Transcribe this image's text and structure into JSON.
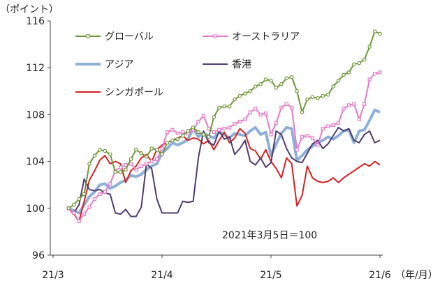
{
  "chart_data": {
    "type": "line",
    "title": "",
    "ylabel": "（ポイント）",
    "xlabel": "（年/月）",
    "ylim": [
      96,
      116
    ],
    "yticks": [
      96,
      100,
      104,
      108,
      112,
      116
    ],
    "xticks": [
      {
        "label": "21/3",
        "x": 0
      },
      {
        "label": "21/4",
        "x": 21
      },
      {
        "label": "21/5",
        "x": 42
      },
      {
        "label": "21/6",
        "x": 63
      }
    ],
    "grid": false,
    "legend_position": "top-left inside",
    "annotation": "2021年3月5日＝100",
    "x_range": [
      0,
      63
    ],
    "series": [
      {
        "name": "グローバル",
        "color": "#70963a",
        "marker": "circle-open",
        "x": [
          3,
          4,
          5,
          6,
          7,
          8,
          9,
          10,
          11,
          12,
          13,
          14,
          15,
          16,
          17,
          18,
          19,
          20,
          21,
          22,
          23,
          24,
          25,
          26,
          27,
          28,
          29,
          30,
          31,
          32,
          33,
          34,
          35,
          36,
          37,
          38,
          39,
          40,
          41,
          42,
          43,
          44,
          45,
          46,
          47,
          48,
          49,
          50,
          51,
          52,
          53,
          54,
          55,
          56,
          57,
          58,
          59,
          60,
          61,
          62,
          63
        ],
        "values": [
          100.0,
          100.3,
          100.8,
          101.2,
          103.8,
          104.5,
          105.0,
          104.9,
          104.6,
          103.1,
          103.1,
          103.3,
          104.2,
          105.0,
          104.7,
          104.4,
          105.1,
          105.0,
          104.6,
          105.6,
          105.8,
          105.9,
          106.2,
          106.6,
          106.9,
          106.5,
          106.3,
          106.1,
          107.8,
          108.6,
          108.7,
          108.7,
          109.3,
          109.6,
          109.8,
          110.0,
          110.4,
          110.6,
          111.0,
          110.9,
          110.3,
          110.6,
          111.1,
          111.2,
          110.0,
          108.2,
          109.3,
          109.5,
          109.4,
          109.6,
          109.7,
          110.4,
          110.9,
          111.4,
          111.6,
          112.3,
          112.4,
          112.7,
          113.8,
          115.1,
          114.9
        ]
      },
      {
        "name": "オーストラリア",
        "color": "#e878c8",
        "marker": "square-open",
        "x": [
          3,
          4,
          5,
          6,
          7,
          8,
          9,
          10,
          11,
          12,
          13,
          14,
          15,
          16,
          17,
          18,
          19,
          20,
          21,
          22,
          23,
          24,
          25,
          26,
          27,
          28,
          29,
          30,
          31,
          32,
          33,
          34,
          35,
          36,
          37,
          38,
          39,
          40,
          41,
          42,
          43,
          44,
          45,
          46,
          47,
          48,
          49,
          50,
          51,
          52,
          53,
          54,
          55,
          56,
          57,
          58,
          59,
          60,
          61,
          62,
          63
        ],
        "values": [
          100.0,
          99.6,
          98.9,
          99.5,
          100.1,
          100.8,
          101.2,
          101.4,
          102.1,
          103.2,
          103.5,
          103.7,
          103.8,
          103.3,
          103.6,
          103.8,
          104.0,
          104.2,
          105.1,
          106.5,
          106.7,
          106.4,
          106.5,
          106.4,
          106.7,
          107.4,
          107.9,
          106.8,
          106.5,
          106.7,
          106.8,
          106.9,
          107.2,
          107.4,
          107.6,
          108.2,
          108.5,
          108.0,
          108.1,
          106.3,
          107.3,
          108.6,
          108.9,
          108.6,
          105.0,
          106.1,
          106.2,
          106.0,
          105.4,
          106.8,
          107.0,
          107.1,
          107.3,
          108.5,
          108.8,
          108.9,
          107.6,
          108.9,
          111.0,
          111.5,
          111.6
        ]
      },
      {
        "name": "アジア",
        "color": "#8fafd6",
        "marker": "none",
        "x": [
          3,
          4,
          5,
          6,
          7,
          8,
          9,
          10,
          11,
          12,
          13,
          14,
          15,
          16,
          17,
          18,
          19,
          20,
          21,
          22,
          23,
          24,
          25,
          26,
          27,
          28,
          29,
          30,
          31,
          32,
          33,
          34,
          35,
          36,
          37,
          38,
          39,
          40,
          41,
          42,
          43,
          44,
          45,
          46,
          47,
          48,
          49,
          50,
          51,
          52,
          53,
          54,
          55,
          56,
          57,
          58,
          59,
          60,
          61,
          62,
          63
        ],
        "values": [
          100.0,
          99.8,
          99.6,
          100.3,
          101.0,
          101.4,
          102.0,
          102.1,
          101.7,
          101.9,
          102.2,
          102.4,
          102.8,
          102.7,
          102.9,
          103.3,
          103.6,
          103.8,
          104.7,
          105.1,
          105.6,
          105.4,
          105.6,
          105.9,
          106.8,
          106.1,
          106.4,
          106.2,
          106.0,
          106.5,
          106.3,
          106.0,
          106.4,
          106.3,
          106.2,
          106.6,
          106.9,
          106.3,
          106.5,
          104.5,
          105.5,
          106.4,
          106.9,
          106.8,
          104.1,
          104.5,
          105.0,
          105.3,
          105.6,
          105.8,
          106.1,
          105.9,
          106.2,
          106.6,
          106.7,
          105.6,
          106.6,
          106.7,
          107.5,
          108.4,
          108.2
        ]
      },
      {
        "name": "香港",
        "color": "#4e3c6e",
        "marker": "none",
        "x": [
          3,
          4,
          5,
          6,
          7,
          8,
          9,
          10,
          11,
          12,
          13,
          14,
          15,
          16,
          17,
          18,
          19,
          20,
          21,
          22,
          23,
          24,
          25,
          26,
          27,
          28,
          29,
          30,
          31,
          32,
          33,
          34,
          35,
          36,
          37,
          38,
          39,
          40,
          41,
          42,
          43,
          44,
          45,
          46,
          47,
          48,
          49,
          50,
          51,
          52,
          53,
          54,
          55,
          56,
          57,
          58,
          59,
          60,
          61,
          62,
          63
        ],
        "values": [
          100.0,
          99.6,
          100.3,
          102.5,
          101.6,
          101.5,
          101.6,
          101.3,
          101.2,
          99.6,
          99.5,
          99.9,
          99.3,
          99.3,
          100.1,
          103.8,
          103.4,
          100.8,
          99.6,
          99.6,
          99.6,
          99.6,
          100.6,
          100.5,
          100.6,
          104.3,
          106.6,
          105.6,
          105.4,
          106.6,
          105.9,
          106.1,
          104.6,
          105.1,
          105.8,
          104.0,
          103.7,
          104.3,
          103.5,
          103.9,
          106.6,
          106.3,
          105.1,
          104.3,
          104.0,
          103.9,
          104.7,
          105.5,
          105.8,
          105.1,
          105.5,
          106.2,
          106.9,
          106.6,
          106.8,
          105.8,
          105.6,
          106.3,
          106.6,
          105.6,
          105.8
        ]
      },
      {
        "name": "シンガポール",
        "color": "#d62020",
        "marker": "none",
        "x": [
          3,
          4,
          5,
          6,
          7,
          8,
          9,
          10,
          11,
          12,
          13,
          14,
          15,
          16,
          17,
          18,
          19,
          20,
          21,
          22,
          23,
          24,
          25,
          26,
          27,
          28,
          29,
          30,
          31,
          32,
          33,
          34,
          35,
          36,
          37,
          38,
          39,
          40,
          41,
          42,
          43,
          44,
          45,
          46,
          47,
          48,
          49,
          50,
          51,
          52,
          53,
          54,
          55,
          56,
          57,
          58,
          59,
          60,
          61,
          62,
          63
        ],
        "values": [
          100.0,
          99.5,
          98.9,
          100.6,
          102.4,
          103.2,
          104.1,
          104.5,
          103.8,
          104.0,
          103.8,
          102.2,
          103.2,
          103.6,
          104.3,
          104.6,
          104.0,
          105.0,
          105.4,
          105.6,
          105.8,
          106.0,
          106.2,
          105.8,
          106.0,
          105.9,
          105.5,
          105.8,
          105.0,
          105.8,
          106.5,
          105.6,
          106.0,
          106.8,
          106.4,
          105.1,
          104.9,
          104.2,
          105.0,
          104.0,
          103.4,
          102.6,
          104.3,
          103.8,
          100.2,
          101.1,
          103.6,
          102.6,
          102.3,
          102.2,
          102.3,
          102.6,
          102.2,
          102.6,
          102.9,
          103.2,
          103.5,
          103.8,
          103.6,
          104.0,
          103.7
        ]
      }
    ]
  }
}
